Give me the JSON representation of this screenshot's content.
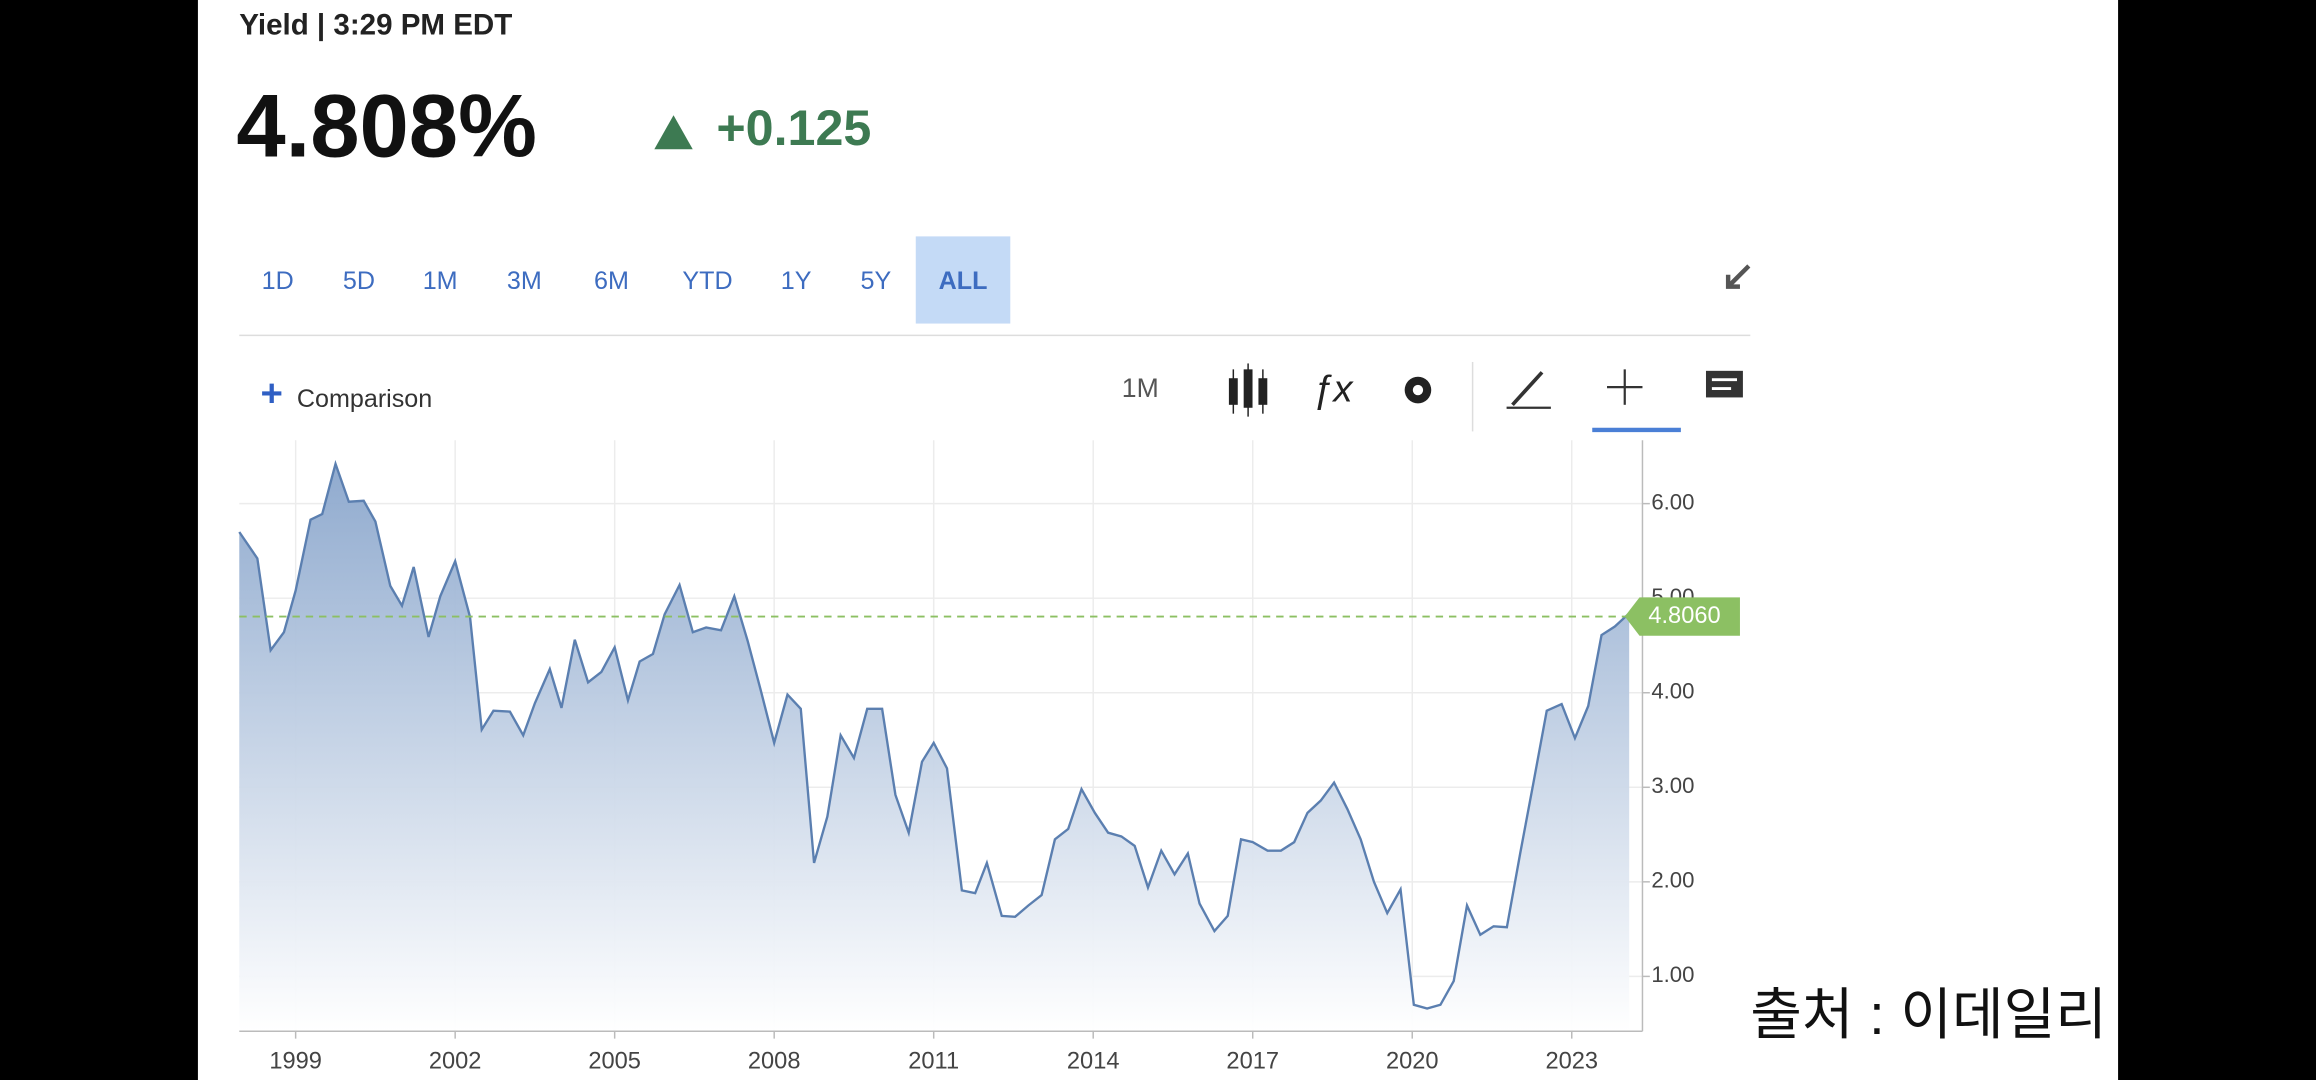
{
  "header": {
    "title": "Yield | 3:29 PM EDT",
    "price": "4.808%",
    "change": "+0.125"
  },
  "ranges": [
    "1D",
    "5D",
    "1M",
    "3M",
    "6M",
    "YTD",
    "1Y",
    "5Y",
    "ALL"
  ],
  "selected_range": 8,
  "toolbar": {
    "comparison": "Comparison",
    "interval": "1M"
  },
  "source": "출처 : 이데일리",
  "chart_data": {
    "type": "area",
    "color": "#5b7fb0",
    "x": [
      1997.94,
      1998.28,
      1998.53,
      1998.78,
      1999.0,
      1999.28,
      1999.5,
      1999.75,
      2000.0,
      2000.28,
      2000.5,
      2000.78,
      2001.0,
      2001.22,
      2001.5,
      2001.72,
      2002.0,
      2002.28,
      2002.5,
      2002.72,
      2003.03,
      2003.28,
      2003.5,
      2003.78,
      2004.0,
      2004.25,
      2004.5,
      2004.75,
      2005.0,
      2005.25,
      2005.47,
      2005.72,
      2005.94,
      2006.22,
      2006.47,
      2006.72,
      2007.0,
      2007.25,
      2007.5,
      2007.75,
      2008.0,
      2008.25,
      2008.5,
      2008.75,
      2009.0,
      2009.25,
      2009.5,
      2009.75,
      2010.03,
      2010.28,
      2010.53,
      2010.78,
      2011.0,
      2011.25,
      2011.53,
      2011.78,
      2012.0,
      2012.28,
      2012.53,
      2012.78,
      2013.03,
      2013.28,
      2013.53,
      2013.78,
      2014.03,
      2014.28,
      2014.53,
      2014.78,
      2015.03,
      2015.28,
      2015.53,
      2015.78,
      2016.0,
      2016.28,
      2016.53,
      2016.78,
      2017.0,
      2017.28,
      2017.53,
      2017.78,
      2018.03,
      2018.28,
      2018.53,
      2018.78,
      2019.03,
      2019.28,
      2019.53,
      2019.78,
      2020.03,
      2020.28,
      2020.53,
      2020.78,
      2021.03,
      2021.28,
      2021.53,
      2021.78,
      2022.03,
      2022.28,
      2022.53,
      2022.81,
      2023.06,
      2023.31,
      2023.56,
      2023.81,
      2024.08
    ],
    "values": [
      5.7,
      5.42,
      4.45,
      4.64,
      5.08,
      5.83,
      5.89,
      6.42,
      6.02,
      6.03,
      5.81,
      5.13,
      4.92,
      5.33,
      4.59,
      5.02,
      5.39,
      4.8,
      3.61,
      3.81,
      3.8,
      3.55,
      3.89,
      4.25,
      3.84,
      4.56,
      4.11,
      4.22,
      4.48,
      3.92,
      4.33,
      4.41,
      4.83,
      5.14,
      4.64,
      4.69,
      4.66,
      5.02,
      4.55,
      4.02,
      3.47,
      3.98,
      3.83,
      2.2,
      2.69,
      3.55,
      3.31,
      3.83,
      3.83,
      2.92,
      2.52,
      3.27,
      3.47,
      3.2,
      1.91,
      1.88,
      2.2,
      1.64,
      1.63,
      1.75,
      1.86,
      2.45,
      2.56,
      2.98,
      2.73,
      2.52,
      2.48,
      2.38,
      1.94,
      2.33,
      2.08,
      2.3,
      1.77,
      1.48,
      1.64,
      2.45,
      2.42,
      2.33,
      2.33,
      2.42,
      2.73,
      2.86,
      3.05,
      2.77,
      2.45,
      2.0,
      1.67,
      1.92,
      0.7,
      0.66,
      0.7,
      0.95,
      1.75,
      1.44,
      1.53,
      1.52,
      2.3,
      3.05,
      3.81,
      3.88,
      3.52,
      3.86,
      4.61,
      4.7,
      4.84
    ],
    "xlim": [
      1997.94,
      2024.33
    ],
    "ylim": [
      0.42,
      6.67
    ],
    "xticks": [
      1999,
      2002,
      2005,
      2008,
      2011,
      2014,
      2017,
      2020,
      2023
    ],
    "yticks": [
      {
        "value": 1,
        "label": "1.00"
      },
      {
        "value": 2,
        "label": "2.00"
      },
      {
        "value": 3,
        "label": "3.00"
      },
      {
        "value": 4,
        "label": "4.00"
      },
      {
        "value": 5,
        "label": "5.00"
      },
      {
        "value": 6,
        "label": "6.00"
      }
    ],
    "grid": true,
    "reference": {
      "value": 4.806,
      "label": "4.8060",
      "color": "#8cc063"
    }
  }
}
